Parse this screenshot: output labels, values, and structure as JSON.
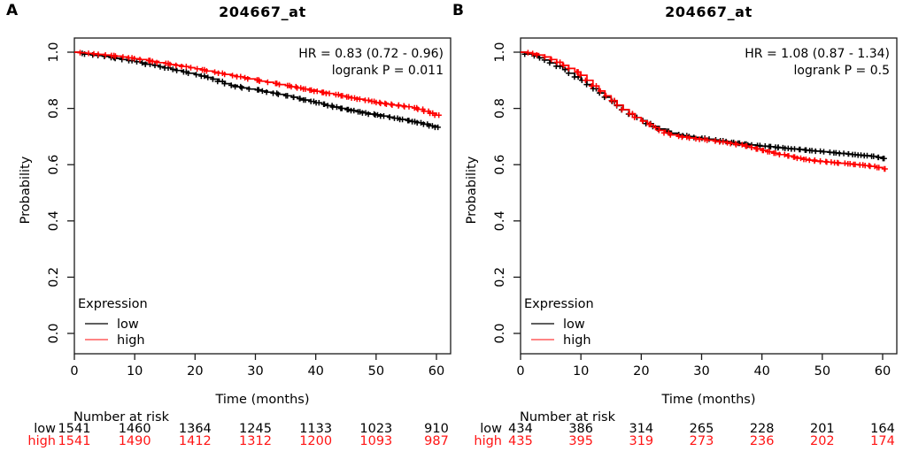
{
  "chart_data": [
    {
      "type": "line",
      "subtype": "kaplan-meier",
      "panel_label": "A",
      "title": "204667_at",
      "annotation": {
        "hr": "HR = 0.83 (0.72 - 0.96)",
        "logrank": "logrank P = 0.011"
      },
      "xlabel": "Time (months)",
      "ylabel": "Probability",
      "xticks": [
        0,
        10,
        20,
        30,
        40,
        50,
        60
      ],
      "yticks": [
        "0.0",
        "0.2",
        "0.4",
        "0.6",
        "0.8",
        "1.0"
      ],
      "xlim": [
        0,
        62.5
      ],
      "ylim": [
        -0.04,
        1.05
      ],
      "grid": false,
      "legend": {
        "title": "Expression",
        "position": "bottom-left",
        "items": [
          {
            "label": "low",
            "color": "#000000",
            "swatch": "#5f5f5f"
          },
          {
            "label": "high",
            "color": "#ff0000",
            "swatch": "#ff8585"
          }
        ]
      },
      "series": [
        {
          "name": "low",
          "color": "#000000",
          "t_step": 1,
          "p": [
            1.0,
            0.996,
            0.993,
            0.99,
            0.988,
            0.985,
            0.981,
            0.978,
            0.974,
            0.97,
            0.966,
            0.962,
            0.957,
            0.953,
            0.948,
            0.944,
            0.939,
            0.935,
            0.93,
            0.925,
            0.92,
            0.915,
            0.91,
            0.904,
            0.896,
            0.888,
            0.882,
            0.877,
            0.873,
            0.869,
            0.866,
            0.862,
            0.858,
            0.854,
            0.85,
            0.845,
            0.84,
            0.835,
            0.83,
            0.825,
            0.82,
            0.815,
            0.81,
            0.805,
            0.8,
            0.796,
            0.792,
            0.788,
            0.784,
            0.78,
            0.777,
            0.773,
            0.769,
            0.765,
            0.761,
            0.757,
            0.753,
            0.749,
            0.744,
            0.738,
            0.733
          ]
        },
        {
          "name": "high",
          "color": "#ff0000",
          "t_step": 1,
          "p": [
            1.0,
            0.998,
            0.996,
            0.994,
            0.992,
            0.99,
            0.988,
            0.986,
            0.983,
            0.98,
            0.977,
            0.974,
            0.97,
            0.967,
            0.963,
            0.96,
            0.956,
            0.953,
            0.949,
            0.945,
            0.941,
            0.937,
            0.933,
            0.929,
            0.925,
            0.921,
            0.917,
            0.913,
            0.909,
            0.905,
            0.901,
            0.897,
            0.893,
            0.889,
            0.885,
            0.881,
            0.877,
            0.873,
            0.869,
            0.865,
            0.861,
            0.857,
            0.853,
            0.849,
            0.845,
            0.841,
            0.837,
            0.833,
            0.829,
            0.825,
            0.821,
            0.818,
            0.815,
            0.812,
            0.809,
            0.806,
            0.802,
            0.797,
            0.79,
            0.783,
            0.776
          ]
        }
      ],
      "risk_table": {
        "title": "Number at risk",
        "time_points": [
          0,
          10,
          20,
          30,
          40,
          50,
          60
        ],
        "rows": [
          {
            "label": "low",
            "color": "#000000",
            "values": [
              1541,
              1460,
              1364,
              1245,
              1133,
              1023,
              910
            ]
          },
          {
            "label": "high",
            "color": "#ff1414",
            "values": [
              1541,
              1490,
              1412,
              1312,
              1200,
              1093,
              987
            ]
          }
        ]
      }
    },
    {
      "type": "line",
      "subtype": "kaplan-meier",
      "panel_label": "B",
      "title": "204667_at",
      "annotation": {
        "hr": "HR = 1.08 (0.87 - 1.34)",
        "logrank": "logrank P = 0.5"
      },
      "xlabel": "Time (months)",
      "ylabel": "Probability",
      "xticks": [
        0,
        10,
        20,
        30,
        40,
        50,
        60
      ],
      "yticks": [
        "0.0",
        "0.2",
        "0.4",
        "0.6",
        "0.8",
        "1.0"
      ],
      "xlim": [
        0,
        62.5
      ],
      "ylim": [
        -0.04,
        1.05
      ],
      "grid": false,
      "legend": {
        "title": "Expression",
        "position": "bottom-left",
        "items": [
          {
            "label": "low",
            "color": "#000000",
            "swatch": "#5f5f5f"
          },
          {
            "label": "high",
            "color": "#ff0000",
            "swatch": "#ff8585"
          }
        ]
      },
      "series": [
        {
          "name": "low",
          "color": "#000000",
          "t_step": 1,
          "p": [
            1.0,
            0.993,
            0.987,
            0.98,
            0.972,
            0.962,
            0.95,
            0.938,
            0.925,
            0.912,
            0.9,
            0.885,
            0.87,
            0.855,
            0.84,
            0.825,
            0.81,
            0.795,
            0.78,
            0.768,
            0.757,
            0.746,
            0.736,
            0.727,
            0.719,
            0.712,
            0.707,
            0.703,
            0.7,
            0.697,
            0.694,
            0.691,
            0.688,
            0.685,
            0.682,
            0.679,
            0.676,
            0.673,
            0.67,
            0.668,
            0.666,
            0.664,
            0.662,
            0.66,
            0.658,
            0.656,
            0.654,
            0.652,
            0.65,
            0.648,
            0.646,
            0.644,
            0.642,
            0.64,
            0.638,
            0.636,
            0.634,
            0.632,
            0.63,
            0.626,
            0.622
          ]
        },
        {
          "name": "high",
          "color": "#ff0000",
          "t_step": 1,
          "p": [
            1.0,
            0.998,
            0.995,
            0.99,
            0.983,
            0.974,
            0.964,
            0.953,
            0.942,
            0.93,
            0.918,
            0.9,
            0.88,
            0.862,
            0.845,
            0.828,
            0.812,
            0.796,
            0.781,
            0.768,
            0.755,
            0.743,
            0.732,
            0.722,
            0.713,
            0.706,
            0.701,
            0.698,
            0.695,
            0.692,
            0.69,
            0.687,
            0.684,
            0.681,
            0.678,
            0.675,
            0.671,
            0.666,
            0.661,
            0.656,
            0.651,
            0.646,
            0.641,
            0.636,
            0.631,
            0.627,
            0.623,
            0.619,
            0.616,
            0.613,
            0.611,
            0.609,
            0.607,
            0.605,
            0.603,
            0.601,
            0.599,
            0.597,
            0.594,
            0.59,
            0.585
          ]
        }
      ],
      "risk_table": {
        "title": "Number at risk",
        "time_points": [
          0,
          10,
          20,
          30,
          40,
          50,
          60
        ],
        "rows": [
          {
            "label": "low",
            "color": "#000000",
            "values": [
              434,
              386,
              314,
              265,
              228,
              201,
              164
            ]
          },
          {
            "label": "high",
            "color": "#ff1414",
            "values": [
              435,
              395,
              319,
              273,
              236,
              202,
              174
            ]
          }
        ]
      }
    }
  ]
}
